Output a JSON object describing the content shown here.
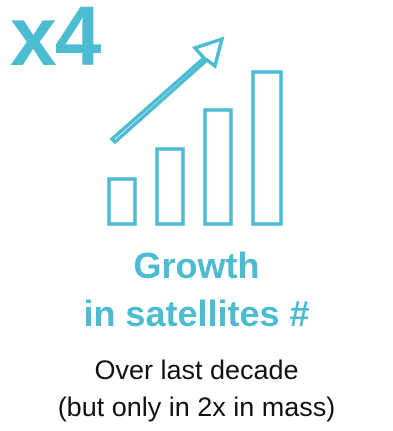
{
  "multiplier": "x4",
  "headline": {
    "line1": "Growth",
    "line2": "in satellites #"
  },
  "caption": {
    "line1": "Over last decade",
    "line2": "(but only in 2x in mass)"
  },
  "icon": "bar-chart-growth-arrow-icon",
  "colors": {
    "accent": "#4bbcd1",
    "text": "#111111",
    "background": "#ffffff"
  }
}
